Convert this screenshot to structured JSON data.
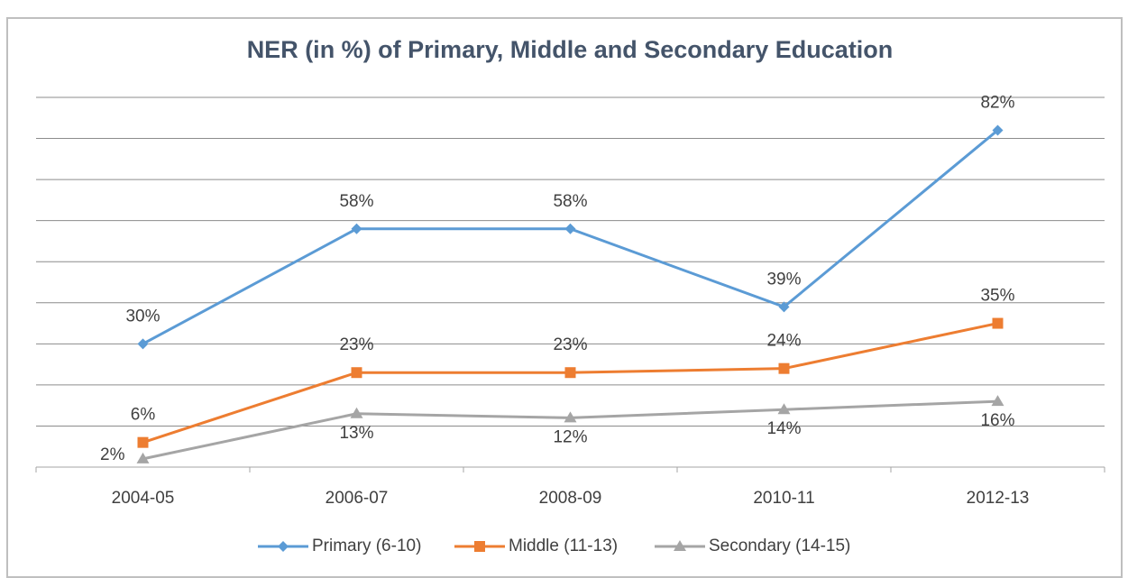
{
  "chart_data": {
    "type": "line",
    "title": "NER (in %) of Primary, Middle and Secondary Education",
    "categories": [
      "2004-05",
      "2006-07",
      "2008-09",
      "2010-11",
      "2012-13"
    ],
    "series": [
      {
        "name": "Primary (6-10)",
        "color": "#5b9bd5",
        "marker": "diamond",
        "values": [
          30,
          58,
          58,
          39,
          82
        ],
        "value_labels": [
          "30%",
          "58%",
          "58%",
          "39%",
          "82%"
        ]
      },
      {
        "name": "Middle (11-13)",
        "color": "#ed7d31",
        "marker": "square",
        "values": [
          6,
          23,
          23,
          24,
          35
        ],
        "value_labels": [
          "6%",
          "23%",
          "23%",
          "24%",
          "35%"
        ]
      },
      {
        "name": "Secondary (14-15)",
        "color": "#a5a5a5",
        "marker": "triangle",
        "values": [
          2,
          13,
          12,
          14,
          16
        ],
        "value_labels": [
          "2%",
          "13%",
          "12%",
          "14%",
          "16%"
        ]
      }
    ],
    "ylim": [
      0,
      90
    ],
    "yticks": [
      0,
      10,
      20,
      30,
      40,
      50,
      60,
      70,
      80,
      90
    ],
    "grid": true,
    "legend": "bottom"
  }
}
